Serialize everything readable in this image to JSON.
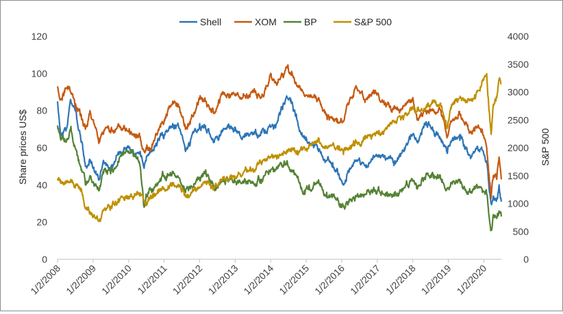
{
  "chart_data": {
    "type": "line",
    "ylabel": "Share prices US$",
    "y2label": "S&P 500",
    "ylim": [
      0,
      120
    ],
    "y2lim": [
      0,
      4000
    ],
    "yticks": [
      0,
      20,
      40,
      60,
      80,
      100,
      120
    ],
    "y2ticks": [
      0,
      500,
      1000,
      1500,
      2000,
      2500,
      3000,
      3500,
      4000
    ],
    "xtick_labels": [
      "1/2/2008",
      "1/2/2009",
      "1/2/2010",
      "1/2/2011",
      "1/2/2012",
      "1/2/2013",
      "1/2/2014",
      "1/2/2015",
      "1/2/2016",
      "1/2/2017",
      "1/2/2018",
      "1/2/2019",
      "1/2/2020"
    ],
    "xlim": [
      "2008-01-02",
      "2020-07-01"
    ],
    "grid": false,
    "legend_position": "top",
    "series": [
      {
        "name": "Shell",
        "axis": "left",
        "color": "#2e75b6",
        "points": [
          [
            "2008-01-02",
            85
          ],
          [
            "2008-02-01",
            68
          ],
          [
            "2008-04-01",
            70
          ],
          [
            "2008-05-15",
            86
          ],
          [
            "2008-07-01",
            80
          ],
          [
            "2008-09-01",
            63
          ],
          [
            "2008-10-15",
            50
          ],
          [
            "2008-12-01",
            53
          ],
          [
            "2009-03-05",
            43
          ],
          [
            "2009-05-01",
            52
          ],
          [
            "2009-07-01",
            49
          ],
          [
            "2009-10-01",
            57
          ],
          [
            "2010-01-04",
            60
          ],
          [
            "2010-03-01",
            56
          ],
          [
            "2010-05-01",
            58
          ],
          [
            "2010-06-10",
            49
          ],
          [
            "2010-07-01",
            53
          ],
          [
            "2010-09-01",
            58
          ],
          [
            "2010-11-01",
            65
          ],
          [
            "2011-01-03",
            67
          ],
          [
            "2011-04-01",
            73
          ],
          [
            "2011-06-01",
            71
          ],
          [
            "2011-08-10",
            58
          ],
          [
            "2011-10-01",
            64
          ],
          [
            "2012-01-03",
            73
          ],
          [
            "2012-03-01",
            72
          ],
          [
            "2012-06-01",
            63
          ],
          [
            "2012-09-01",
            70
          ],
          [
            "2013-01-02",
            71
          ],
          [
            "2013-04-01",
            66
          ],
          [
            "2013-07-01",
            67
          ],
          [
            "2013-10-01",
            68
          ],
          [
            "2014-01-02",
            71
          ],
          [
            "2014-03-01",
            73
          ],
          [
            "2014-06-20",
            87
          ],
          [
            "2014-08-01",
            84
          ],
          [
            "2014-10-01",
            75
          ],
          [
            "2014-12-15",
            65
          ],
          [
            "2015-02-01",
            63
          ],
          [
            "2015-05-01",
            59
          ],
          [
            "2015-08-01",
            53
          ],
          [
            "2015-10-01",
            52
          ],
          [
            "2016-01-20",
            40
          ],
          [
            "2016-03-01",
            46
          ],
          [
            "2016-06-01",
            53
          ],
          [
            "2016-09-01",
            50
          ],
          [
            "2016-12-01",
            55
          ],
          [
            "2017-01-03",
            56
          ],
          [
            "2017-04-01",
            54
          ],
          [
            "2017-07-01",
            53
          ],
          [
            "2017-09-01",
            57
          ],
          [
            "2018-01-02",
            67
          ],
          [
            "2018-02-15",
            63
          ],
          [
            "2018-05-20",
            74
          ],
          [
            "2018-08-01",
            69
          ],
          [
            "2018-10-15",
            65
          ],
          [
            "2018-12-24",
            57
          ],
          [
            "2019-02-01",
            63
          ],
          [
            "2019-05-01",
            64
          ],
          [
            "2019-08-15",
            56
          ],
          [
            "2019-10-01",
            58
          ],
          [
            "2019-12-15",
            59
          ],
          [
            "2020-02-01",
            52
          ],
          [
            "2020-03-18",
            30
          ],
          [
            "2020-04-10",
            34
          ],
          [
            "2020-05-15",
            33
          ],
          [
            "2020-06-08",
            40
          ],
          [
            "2020-07-01",
            31
          ]
        ]
      },
      {
        "name": "XOM",
        "axis": "left",
        "color": "#c55a11",
        "points": [
          [
            "2008-01-02",
            93
          ],
          [
            "2008-02-01",
            86
          ],
          [
            "2008-04-01",
            92
          ],
          [
            "2008-05-15",
            90
          ],
          [
            "2008-07-01",
            82
          ],
          [
            "2008-09-01",
            78
          ],
          [
            "2008-10-15",
            70
          ],
          [
            "2008-12-01",
            80
          ],
          [
            "2009-03-05",
            65
          ],
          [
            "2009-05-01",
            70
          ],
          [
            "2009-07-01",
            68
          ],
          [
            "2009-10-01",
            72
          ],
          [
            "2010-01-04",
            69
          ],
          [
            "2010-03-01",
            66
          ],
          [
            "2010-05-01",
            66
          ],
          [
            "2010-06-10",
            58
          ],
          [
            "2010-07-01",
            60
          ],
          [
            "2010-09-01",
            62
          ],
          [
            "2010-11-01",
            69
          ],
          [
            "2011-01-03",
            75
          ],
          [
            "2011-04-01",
            85
          ],
          [
            "2011-06-01",
            82
          ],
          [
            "2011-08-10",
            70
          ],
          [
            "2011-10-01",
            75
          ],
          [
            "2012-01-03",
            86
          ],
          [
            "2012-03-01",
            85
          ],
          [
            "2012-06-01",
            79
          ],
          [
            "2012-09-01",
            90
          ],
          [
            "2013-01-02",
            88
          ],
          [
            "2013-04-01",
            88
          ],
          [
            "2013-07-01",
            91
          ],
          [
            "2013-10-01",
            87
          ],
          [
            "2014-01-02",
            100
          ],
          [
            "2014-03-01",
            95
          ],
          [
            "2014-06-20",
            103
          ],
          [
            "2014-08-01",
            99
          ],
          [
            "2014-10-01",
            93
          ],
          [
            "2014-12-15",
            88
          ],
          [
            "2015-02-01",
            88
          ],
          [
            "2015-05-01",
            86
          ],
          [
            "2015-08-01",
            78
          ],
          [
            "2015-10-01",
            76
          ],
          [
            "2016-01-20",
            74
          ],
          [
            "2016-03-01",
            83
          ],
          [
            "2016-06-01",
            93
          ],
          [
            "2016-09-01",
            86
          ],
          [
            "2016-12-01",
            89
          ],
          [
            "2017-01-03",
            89
          ],
          [
            "2017-04-01",
            82
          ],
          [
            "2017-07-01",
            81
          ],
          [
            "2017-09-01",
            80
          ],
          [
            "2018-01-02",
            87
          ],
          [
            "2018-02-15",
            75
          ],
          [
            "2018-05-20",
            80
          ],
          [
            "2018-08-01",
            80
          ],
          [
            "2018-10-15",
            80
          ],
          [
            "2018-12-24",
            66
          ],
          [
            "2019-02-01",
            74
          ],
          [
            "2019-05-01",
            78
          ],
          [
            "2019-08-15",
            68
          ],
          [
            "2019-10-01",
            69
          ],
          [
            "2019-12-15",
            70
          ],
          [
            "2020-02-01",
            60
          ],
          [
            "2020-03-18",
            33
          ],
          [
            "2020-04-10",
            45
          ],
          [
            "2020-05-15",
            43
          ],
          [
            "2020-06-08",
            55
          ],
          [
            "2020-07-01",
            43
          ]
        ]
      },
      {
        "name": "BP",
        "axis": "left",
        "color": "#548235",
        "points": [
          [
            "2008-01-02",
            72
          ],
          [
            "2008-02-01",
            65
          ],
          [
            "2008-04-01",
            63
          ],
          [
            "2008-05-15",
            70
          ],
          [
            "2008-07-01",
            60
          ],
          [
            "2008-09-01",
            48
          ],
          [
            "2008-10-15",
            40
          ],
          [
            "2008-12-01",
            45
          ],
          [
            "2009-03-05",
            37
          ],
          [
            "2009-05-01",
            48
          ],
          [
            "2009-07-01",
            46
          ],
          [
            "2009-10-01",
            55
          ],
          [
            "2010-01-04",
            58
          ],
          [
            "2010-03-01",
            56
          ],
          [
            "2010-05-01",
            50
          ],
          [
            "2010-06-10",
            28
          ],
          [
            "2010-07-01",
            35
          ],
          [
            "2010-09-01",
            38
          ],
          [
            "2010-11-01",
            41
          ],
          [
            "2011-01-03",
            45
          ],
          [
            "2011-04-01",
            47
          ],
          [
            "2011-06-01",
            44
          ],
          [
            "2011-08-10",
            36
          ],
          [
            "2011-10-01",
            38
          ],
          [
            "2012-01-03",
            44
          ],
          [
            "2012-03-01",
            46
          ],
          [
            "2012-06-01",
            38
          ],
          [
            "2012-09-01",
            42
          ],
          [
            "2013-01-02",
            42
          ],
          [
            "2013-04-01",
            41
          ],
          [
            "2013-07-01",
            41
          ],
          [
            "2013-10-01",
            43
          ],
          [
            "2014-01-02",
            48
          ],
          [
            "2014-03-01",
            49
          ],
          [
            "2014-06-20",
            53
          ],
          [
            "2014-08-01",
            48
          ],
          [
            "2014-10-01",
            44
          ],
          [
            "2014-12-15",
            37
          ],
          [
            "2015-02-01",
            40
          ],
          [
            "2015-05-01",
            41
          ],
          [
            "2015-08-01",
            36
          ],
          [
            "2015-10-01",
            35
          ],
          [
            "2016-01-20",
            29
          ],
          [
            "2016-03-01",
            30
          ],
          [
            "2016-06-01",
            34
          ],
          [
            "2016-09-01",
            35
          ],
          [
            "2016-12-01",
            37
          ],
          [
            "2017-01-03",
            37
          ],
          [
            "2017-04-01",
            34
          ],
          [
            "2017-07-01",
            34
          ],
          [
            "2017-09-01",
            37
          ],
          [
            "2018-01-02",
            42
          ],
          [
            "2018-02-15",
            38
          ],
          [
            "2018-05-20",
            46
          ],
          [
            "2018-08-01",
            44
          ],
          [
            "2018-10-15",
            43
          ],
          [
            "2018-12-24",
            38
          ],
          [
            "2019-02-01",
            41
          ],
          [
            "2019-05-01",
            43
          ],
          [
            "2019-08-15",
            36
          ],
          [
            "2019-10-01",
            38
          ],
          [
            "2019-12-15",
            38
          ],
          [
            "2020-02-01",
            35
          ],
          [
            "2020-03-18",
            16
          ],
          [
            "2020-04-10",
            24
          ],
          [
            "2020-05-15",
            22
          ],
          [
            "2020-06-08",
            26
          ],
          [
            "2020-07-01",
            23
          ]
        ]
      },
      {
        "name": "S&P 500",
        "axis": "right",
        "color": "#bf9000",
        "points": [
          [
            "2008-01-02",
            1447
          ],
          [
            "2008-02-01",
            1380
          ],
          [
            "2008-04-01",
            1370
          ],
          [
            "2008-05-15",
            1420
          ],
          [
            "2008-07-01",
            1280
          ],
          [
            "2008-09-01",
            1270
          ],
          [
            "2008-10-15",
            900
          ],
          [
            "2008-12-01",
            850
          ],
          [
            "2009-03-05",
            680
          ],
          [
            "2009-05-01",
            900
          ],
          [
            "2009-07-01",
            950
          ],
          [
            "2009-10-01",
            1050
          ],
          [
            "2010-01-04",
            1130
          ],
          [
            "2010-03-01",
            1120
          ],
          [
            "2010-05-01",
            1190
          ],
          [
            "2010-06-10",
            1050
          ],
          [
            "2010-07-01",
            1030
          ],
          [
            "2010-09-01",
            1100
          ],
          [
            "2010-11-01",
            1190
          ],
          [
            "2011-01-03",
            1270
          ],
          [
            "2011-04-01",
            1330
          ],
          [
            "2011-06-01",
            1300
          ],
          [
            "2011-08-10",
            1120
          ],
          [
            "2011-10-01",
            1150
          ],
          [
            "2012-01-03",
            1280
          ],
          [
            "2012-03-01",
            1380
          ],
          [
            "2012-06-01",
            1320
          ],
          [
            "2012-09-01",
            1440
          ],
          [
            "2013-01-02",
            1460
          ],
          [
            "2013-04-01",
            1570
          ],
          [
            "2013-07-01",
            1630
          ],
          [
            "2013-10-01",
            1700
          ],
          [
            "2014-01-02",
            1830
          ],
          [
            "2014-03-01",
            1860
          ],
          [
            "2014-06-20",
            1960
          ],
          [
            "2014-08-01",
            1930
          ],
          [
            "2014-10-01",
            1950
          ],
          [
            "2014-12-15",
            2000
          ],
          [
            "2015-02-01",
            2060
          ],
          [
            "2015-05-01",
            2110
          ],
          [
            "2015-08-01",
            2000
          ],
          [
            "2015-10-01",
            2050
          ],
          [
            "2016-01-20",
            1880
          ],
          [
            "2016-03-01",
            1990
          ],
          [
            "2016-06-01",
            2090
          ],
          [
            "2016-09-01",
            2160
          ],
          [
            "2016-12-01",
            2250
          ],
          [
            "2017-01-03",
            2260
          ],
          [
            "2017-04-01",
            2360
          ],
          [
            "2017-07-01",
            2450
          ],
          [
            "2017-09-01",
            2500
          ],
          [
            "2018-01-02",
            2700
          ],
          [
            "2018-02-15",
            2650
          ],
          [
            "2018-05-20",
            2720
          ],
          [
            "2018-08-01",
            2850
          ],
          [
            "2018-10-15",
            2800
          ],
          [
            "2018-12-24",
            2350
          ],
          [
            "2019-02-01",
            2700
          ],
          [
            "2019-05-01",
            2900
          ],
          [
            "2019-08-15",
            2850
          ],
          [
            "2019-10-01",
            2950
          ],
          [
            "2019-12-15",
            3200
          ],
          [
            "2020-02-01",
            3330
          ],
          [
            "2020-03-18",
            2240
          ],
          [
            "2020-04-10",
            2780
          ],
          [
            "2020-05-15",
            2900
          ],
          [
            "2020-06-08",
            3230
          ],
          [
            "2020-07-01",
            3150
          ]
        ]
      }
    ]
  }
}
